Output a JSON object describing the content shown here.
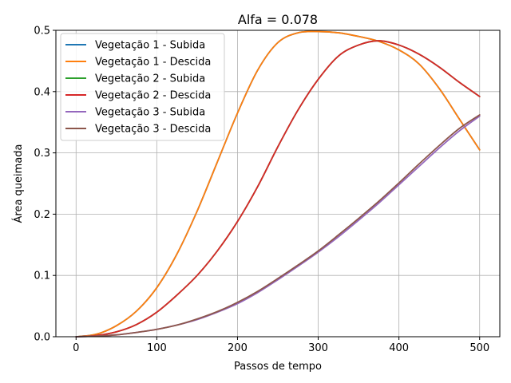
{
  "chart_data": {
    "type": "line",
    "title": "Alfa = 0.078",
    "xlabel": "Passos de tempo",
    "ylabel": "Área queimada",
    "xlim": [
      -25,
      525
    ],
    "ylim": [
      0,
      0.5
    ],
    "xticks": [
      0,
      100,
      200,
      300,
      400,
      500
    ],
    "yticks": [
      0.0,
      0.1,
      0.2,
      0.3,
      0.4,
      0.5
    ],
    "xtick_labels": [
      "0",
      "100",
      "200",
      "300",
      "400",
      "500"
    ],
    "ytick_labels": [
      "0.0",
      "0.1",
      "0.2",
      "0.3",
      "0.4",
      "0.5"
    ],
    "grid": true,
    "legend_position": "upper-left",
    "x": [
      0,
      25,
      50,
      75,
      100,
      125,
      150,
      175,
      200,
      225,
      250,
      275,
      300,
      325,
      350,
      375,
      400,
      425,
      450,
      475,
      500
    ],
    "series": [
      {
        "name": "Vegetação 1 - Subida",
        "color": "#1f77b4",
        "values": [
          0.0,
          0.004,
          0.018,
          0.042,
          0.08,
          0.135,
          0.205,
          0.285,
          0.365,
          0.435,
          0.48,
          0.496,
          0.498,
          0.496,
          0.49,
          0.482,
          0.468,
          0.445,
          0.405,
          0.355,
          0.305
        ]
      },
      {
        "name": "Vegetação 1 - Descida",
        "color": "#ff7f0e",
        "values": [
          0.0,
          0.004,
          0.018,
          0.042,
          0.08,
          0.135,
          0.205,
          0.285,
          0.365,
          0.435,
          0.48,
          0.496,
          0.498,
          0.496,
          0.49,
          0.482,
          0.468,
          0.445,
          0.405,
          0.355,
          0.305
        ]
      },
      {
        "name": "Vegetação 2 - Subida",
        "color": "#2ca02c",
        "values": [
          0.0,
          0.002,
          0.008,
          0.02,
          0.04,
          0.068,
          0.1,
          0.14,
          0.188,
          0.245,
          0.31,
          0.37,
          0.42,
          0.458,
          0.476,
          0.483,
          0.476,
          0.461,
          0.44,
          0.415,
          0.392
        ]
      },
      {
        "name": "Vegetação 2 - Descida",
        "color": "#d62728",
        "values": [
          0.0,
          0.002,
          0.008,
          0.02,
          0.04,
          0.068,
          0.1,
          0.14,
          0.188,
          0.245,
          0.31,
          0.37,
          0.42,
          0.458,
          0.476,
          0.483,
          0.476,
          0.461,
          0.44,
          0.415,
          0.392
        ]
      },
      {
        "name": "Vegetação 3 - Subida",
        "color": "#9467bd",
        "values": [
          0.0,
          0.001,
          0.003,
          0.007,
          0.012,
          0.019,
          0.028,
          0.04,
          0.054,
          0.072,
          0.093,
          0.115,
          0.138,
          0.163,
          0.19,
          0.218,
          0.248,
          0.278,
          0.308,
          0.336,
          0.36
        ]
      },
      {
        "name": "Vegetação 3 - Descida",
        "color": "#8c564b",
        "values": [
          0.0,
          0.001,
          0.003,
          0.007,
          0.012,
          0.019,
          0.029,
          0.041,
          0.056,
          0.074,
          0.095,
          0.117,
          0.14,
          0.166,
          0.193,
          0.221,
          0.251,
          0.282,
          0.312,
          0.34,
          0.362
        ]
      }
    ]
  }
}
